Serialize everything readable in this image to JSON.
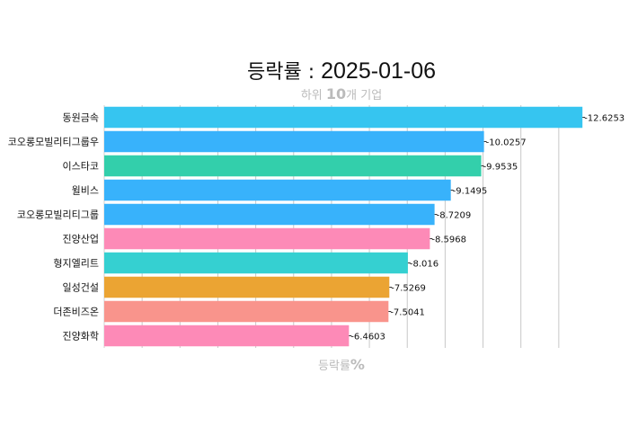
{
  "chart_data": {
    "type": "bar",
    "orientation": "horizontal",
    "title_label": "등락률",
    "title_sep": " : ",
    "title_date": "2025-01-06",
    "subtitle_pre": "하위 ",
    "subtitle_num": "10",
    "subtitle_post": "개 기업",
    "xlabel_pre": "등락률",
    "xlabel_unit": "%",
    "categories": [
      "동원금속",
      "코오롱모빌리티그룹우",
      "이스타코",
      "윌비스",
      "코오롱모빌리티그룹",
      "진양산업",
      "형지엘리트",
      "일성건설",
      "더존비즈온",
      "진양화학"
    ],
    "values": [
      -12.6253,
      -10.0257,
      -9.9535,
      -9.1495,
      -8.7209,
      -8.5968,
      -8.016,
      -7.5269,
      -7.5041,
      -6.4603
    ],
    "value_labels": [
      "-12.6253",
      "-10.0257",
      "-9.9535",
      "-9.1495",
      "-8.7209",
      "-8.5968",
      "-8.016",
      "-7.5269",
      "-7.5041",
      "-6.4603"
    ],
    "colors": [
      "#36c5f0",
      "#38b2fb",
      "#33cfab",
      "#38b2fb",
      "#38b2fb",
      "#fd8ab7",
      "#35d0d1",
      "#eba433",
      "#f9948c",
      "#fd8ab7"
    ],
    "xlim": [
      0,
      13
    ],
    "grid": true,
    "legend": "none"
  }
}
